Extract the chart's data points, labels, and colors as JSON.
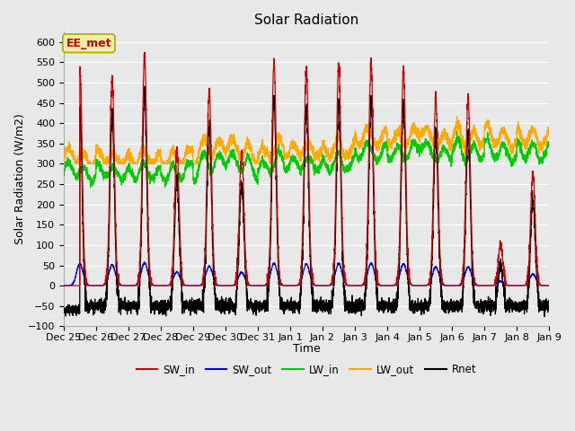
{
  "title": "Solar Radiation",
  "xlabel": "Time",
  "ylabel": "Solar Radiation (W/m2)",
  "ylim": [
    -100,
    625
  ],
  "yticks": [
    -100,
    -50,
    0,
    50,
    100,
    150,
    200,
    250,
    300,
    350,
    400,
    450,
    500,
    550,
    600
  ],
  "x_tick_labels": [
    "Dec 25",
    "Dec 26",
    "Dec 27",
    "Dec 28",
    "Dec 29",
    "Dec 30",
    "Dec 31",
    "Jan 1",
    "Jan 2",
    "Jan 3",
    "Jan 4",
    "Jan 5",
    "Jan 6",
    "Jan 7",
    "Jan 8",
    "Jan 9"
  ],
  "colors": {
    "SW_in": "#cc0000",
    "SW_out": "#0000ee",
    "LW_in": "#00cc00",
    "LW_out": "#ffaa00",
    "Rnet": "#000000"
  },
  "annotation_text": "EE_met",
  "annotation_color": "#cc0000",
  "annotation_bg": "#eeeeaa",
  "bg_color": "#e8e8e8",
  "grid_color": "#ffffff",
  "sw_peaks": [
    545,
    510,
    565,
    335,
    480,
    330,
    550,
    530,
    545,
    550,
    535,
    460,
    460,
    105,
    280
  ],
  "n_days": 15,
  "ppd": 288,
  "title_fontsize": 11,
  "axis_fontsize": 9,
  "tick_fontsize": 8
}
